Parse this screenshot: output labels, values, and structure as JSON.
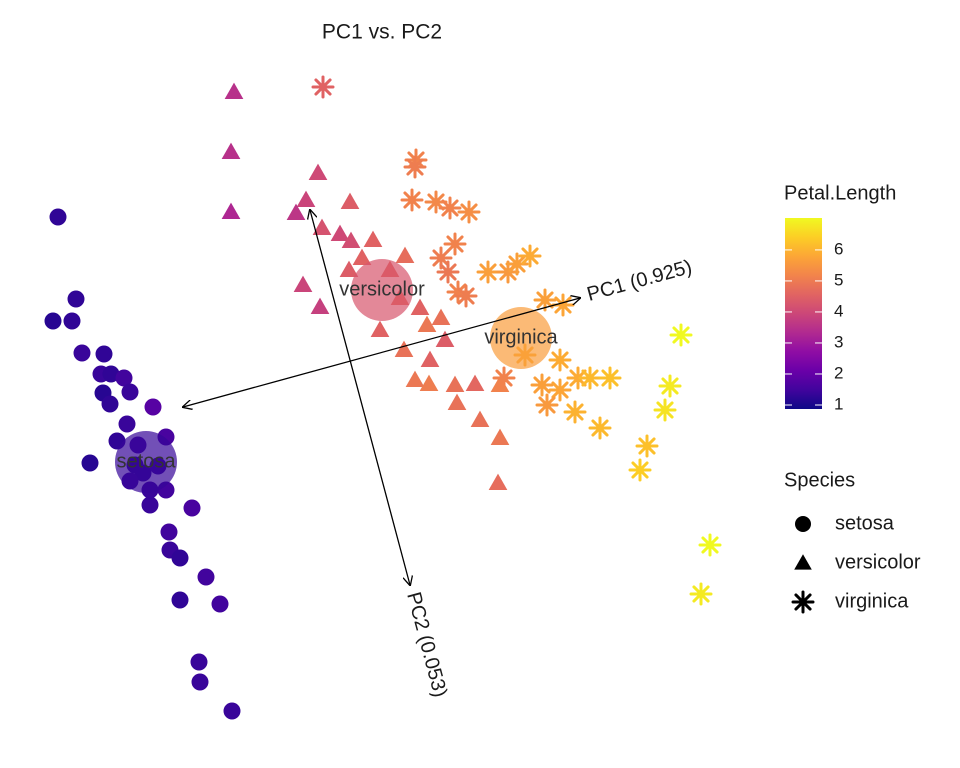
{
  "chart_data": {
    "type": "scatter",
    "title": "PC1 vs. PC2",
    "xlim": [
      -3.5,
      3.5
    ],
    "ylim": [
      -3.3,
      3.3
    ],
    "color_title": "Petal.Length",
    "clim": [
      1,
      6.9
    ],
    "cticks": [
      1,
      2,
      3,
      4,
      5,
      6
    ],
    "shape_title": "Species",
    "series": [
      {
        "name": "setosa",
        "shape": "circle",
        "x": [
          -3.32,
          -3.14,
          -3.37,
          -3.18,
          -3.08,
          -2.86,
          -2.89,
          -2.79,
          -2.66,
          -2.87,
          -2.6,
          -2.8,
          -2.37,
          -2.63,
          -2.24,
          -2.73,
          -2.52,
          -3.0,
          -2.32,
          -2.47,
          -2.6,
          -2.24,
          -1.98,
          -2.4,
          -2.21,
          -2.2,
          -2.1,
          -1.84,
          -2.1,
          -1.7,
          -1.91,
          -1.9,
          -1.58,
          -2.55,
          -2.4
        ],
        "y": [
          1.83,
          1.01,
          0.79,
          0.79,
          0.47,
          0.46,
          0.26,
          0.26,
          0.22,
          0.07,
          0.08,
          -0.04,
          -0.07,
          -0.24,
          -0.37,
          -0.41,
          -0.45,
          -0.63,
          -0.66,
          -0.73,
          -0.81,
          -0.9,
          -1.08,
          -1.05,
          -1.32,
          -1.5,
          -1.58,
          -1.77,
          -2.0,
          -2.04,
          -2.62,
          -2.82,
          -3.11,
          -0.65,
          -0.9
        ],
        "color_values": [
          1.4,
          1.4,
          1.3,
          1.4,
          1.5,
          1.4,
          1.5,
          1.4,
          1.6,
          1.3,
          1.5,
          1.4,
          1.9,
          1.5,
          1.7,
          1.4,
          1.6,
          1.3,
          1.5,
          1.4,
          1.5,
          1.6,
          1.7,
          1.5,
          1.6,
          1.5,
          1.4,
          1.6,
          1.4,
          1.6,
          1.5,
          1.5,
          1.5,
          1.4,
          1.5
        ],
        "centroid_x": -2.44,
        "centroid_y": -0.62,
        "centroid_color": 1.46
      },
      {
        "name": "versicolor",
        "shape": "triangle",
        "x": [
          -1.56,
          -1.59,
          -1.59,
          -0.72,
          -0.84,
          -0.94,
          -0.4,
          -0.68,
          -0.5,
          -0.39,
          -0.17,
          -0.28,
          -0.41,
          0.15,
          0.0,
          -0.87,
          -0.7,
          0.1,
          0.3,
          -0.1,
          0.37,
          0.51,
          0.14,
          0.25,
          0.39,
          0.65,
          0.85,
          0.67,
          1.1,
          0.9,
          1.1,
          1.08,
          0.4,
          0.55
        ],
        "y": [
          3.08,
          2.48,
          1.88,
          2.27,
          2.0,
          1.87,
          1.98,
          1.72,
          1.66,
          1.59,
          1.6,
          1.42,
          1.3,
          1.44,
          1.3,
          1.15,
          0.93,
          1.02,
          0.92,
          0.7,
          0.75,
          0.82,
          0.5,
          0.2,
          0.16,
          0.15,
          0.16,
          -0.03,
          0.15,
          -0.2,
          -0.38,
          -0.83,
          0.4,
          0.6
        ],
        "color_values": [
          3.5,
          3.5,
          3.3,
          4.0,
          3.9,
          3.6,
          4.4,
          4.2,
          4.0,
          4.1,
          4.5,
          4.5,
          4.4,
          4.7,
          4.6,
          3.9,
          3.8,
          4.7,
          4.5,
          4.5,
          4.9,
          4.8,
          4.8,
          4.9,
          5.0,
          4.8,
          4.6,
          4.8,
          5.1,
          4.8,
          4.9,
          4.7,
          4.5,
          4.4
        ],
        "centroid_x": -0.08,
        "centroid_y": 1.1,
        "centroid_color": 4.26
      },
      {
        "name": "virginica",
        "shape": "asterisk",
        "x": [
          -0.67,
          0.26,
          0.25,
          0.22,
          0.46,
          0.6,
          0.79,
          0.65,
          0.51,
          0.58,
          0.68,
          0.76,
          0.98,
          1.18,
          1.27,
          1.4,
          1.55,
          1.73,
          1.14,
          1.52,
          1.7,
          1.88,
          2.0,
          2.2,
          1.57,
          1.85,
          2.1,
          2.57,
          2.5,
          2.8,
          2.75,
          2.91,
          3.2,
          3.11,
          1.35,
          1.7
        ],
        "y": [
          3.13,
          2.4,
          2.33,
          2.0,
          1.98,
          1.92,
          1.88,
          1.56,
          1.42,
          1.28,
          1.08,
          1.04,
          1.28,
          1.28,
          1.36,
          1.44,
          1.0,
          0.95,
          0.22,
          0.15,
          0.1,
          0.22,
          0.22,
          0.22,
          -0.05,
          -0.12,
          -0.28,
          -0.46,
          -0.7,
          0.14,
          -0.1,
          0.65,
          -1.45,
          -1.94,
          0.45,
          0.4
        ],
        "color_values": [
          4.5,
          5.1,
          5.0,
          5.1,
          5.2,
          5.1,
          5.3,
          5.1,
          5.0,
          4.9,
          5.1,
          5.0,
          5.6,
          5.5,
          5.6,
          5.8,
          5.6,
          5.7,
          5.1,
          5.6,
          5.7,
          5.8,
          6.0,
          6.1,
          5.5,
          5.9,
          6.0,
          6.1,
          6.3,
          6.7,
          6.6,
          6.9,
          6.9,
          6.7,
          5.8,
          5.8
        ],
        "centroid_x": 1.31,
        "centroid_y": 0.62,
        "centroid_color": 5.55
      }
    ],
    "arrows": [
      {
        "label": "PC1 (0.925)",
        "x": [
          -2.07,
          1.9
        ],
        "y": [
          -0.07,
          1.02
        ]
      },
      {
        "label": "PC2 (0.053)",
        "x": [
          -0.8,
          0.2
        ],
        "y": [
          1.9,
          -1.85
        ]
      }
    ]
  }
}
